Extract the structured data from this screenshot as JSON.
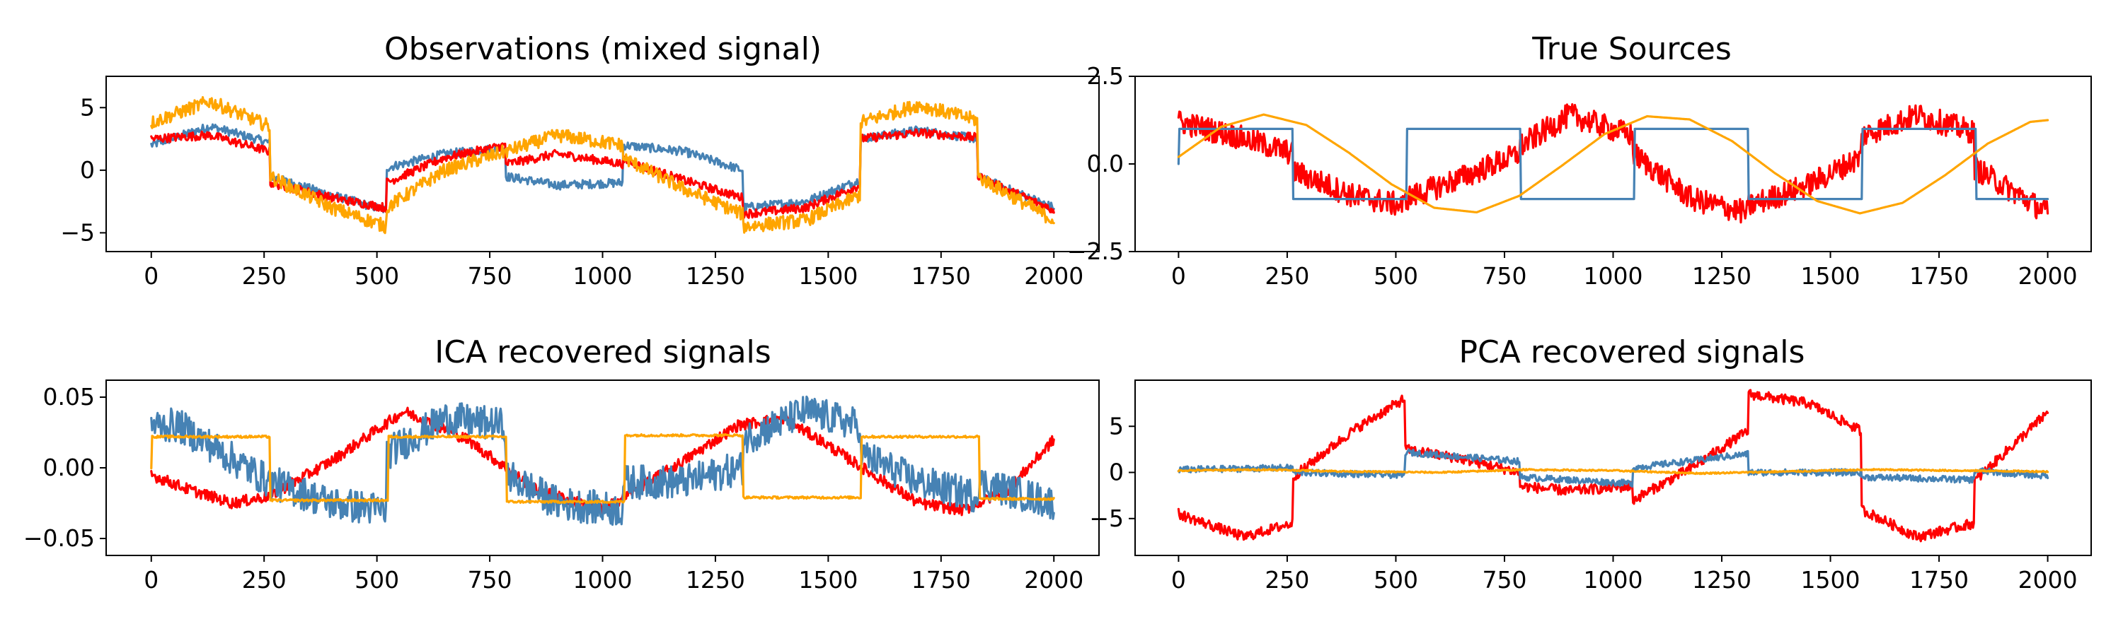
{
  "colors": {
    "red": "#ff0000",
    "blue": "#4682b4",
    "orange": "#ffa500"
  },
  "chart_data": [
    {
      "type": "line",
      "title": "Observations (mixed signal)",
      "xlim": [
        -100,
        2100
      ],
      "ylim": [
        -6.5,
        7.5
      ],
      "xticks": [
        0,
        250,
        500,
        750,
        1000,
        1250,
        1500,
        1750,
        2000
      ],
      "xtick_labels": [
        "0",
        "250",
        "500",
        "750",
        "1000",
        "1250",
        "1500",
        "1750",
        "2000"
      ],
      "yticks": [
        5,
        0,
        -5
      ],
      "ytick_labels": [
        "5",
        "0",
        "−5"
      ],
      "grid": false,
      "series": [
        {
          "color": "#4682b4",
          "x": [
            0,
            130,
            262,
            263,
            400,
            520,
            521,
            650,
            785,
            786,
            900,
            1045,
            1046,
            1180,
            1310,
            1311,
            1450,
            1570,
            1571,
            1700,
            1830,
            1831,
            2000
          ],
          "y": [
            2.0,
            3.5,
            2.2,
            -0.5,
            -2.0,
            -3.2,
            0.2,
            1.3,
            1.8,
            -0.5,
            -1.2,
            -1.0,
            2.0,
            1.5,
            0.0,
            -3.0,
            -2.5,
            -0.8,
            2.5,
            3.2,
            2.5,
            -0.5,
            -3.0
          ],
          "noise": 0.35
        },
        {
          "color": "#ff0000",
          "x": [
            0,
            130,
            262,
            263,
            400,
            520,
            521,
            650,
            785,
            786,
            900,
            1045,
            1046,
            1180,
            1310,
            1311,
            1450,
            1570,
            1571,
            1700,
            1830,
            1831,
            2000
          ],
          "y": [
            2.5,
            2.8,
            1.5,
            -1.0,
            -2.2,
            -3.0,
            -1.0,
            1.0,
            2.0,
            0.5,
            1.3,
            0.5,
            0.8,
            -0.8,
            -2.2,
            -3.5,
            -3.0,
            -1.2,
            2.5,
            3.0,
            2.6,
            -0.5,
            -3.2
          ],
          "noise": 0.35
        },
        {
          "color": "#ffa500",
          "x": [
            0,
            130,
            262,
            263,
            400,
            520,
            521,
            650,
            785,
            786,
            900,
            1045,
            1046,
            1180,
            1310,
            1311,
            1450,
            1570,
            1571,
            1700,
            1830,
            1831,
            2000
          ],
          "y": [
            3.8,
            5.5,
            3.5,
            -0.5,
            -3.0,
            -4.5,
            -3.0,
            0.0,
            1.5,
            1.5,
            2.8,
            2.0,
            1.0,
            -1.5,
            -3.5,
            -4.5,
            -4.0,
            -2.0,
            3.8,
            5.2,
            4.0,
            -0.5,
            -4.0
          ],
          "noise": 0.55
        }
      ]
    },
    {
      "type": "line",
      "title": "True Sources",
      "xlim": [
        -100,
        2100
      ],
      "ylim": [
        -2.5,
        2.5
      ],
      "xticks": [
        0,
        250,
        500,
        750,
        1000,
        1250,
        1500,
        1750,
        2000
      ],
      "xtick_labels": [
        "0",
        "250",
        "500",
        "750",
        "1000",
        "1250",
        "1500",
        "1750",
        "2000"
      ],
      "yticks": [
        2.5,
        0.0,
        -2.5
      ],
      "ytick_labels": [
        "2.5",
        "0.0",
        "−2.5"
      ],
      "grid": false,
      "series": [
        {
          "color": "#ff0000",
          "x": [
            0,
            130,
            262,
            263,
            400,
            520,
            521,
            650,
            785,
            786,
            900,
            1045,
            1046,
            1180,
            1310,
            1311,
            1450,
            1570,
            1571,
            1700,
            1830,
            1831,
            2000
          ],
          "y": [
            1.2,
            0.8,
            0.3,
            -0.2,
            -0.9,
            -1.2,
            -1.0,
            -0.4,
            0.3,
            0.5,
            1.4,
            0.8,
            0.3,
            -1.0,
            -1.4,
            -1.2,
            -0.6,
            0.2,
            0.8,
            1.4,
            0.9,
            -0.1,
            -1.4
          ],
          "noise": 0.35
        },
        {
          "color": "#4682b4",
          "x": [
            0,
            1,
            262,
            263,
            524,
            525,
            786,
            787,
            1048,
            1049,
            1310,
            1311,
            1572,
            1573,
            1834,
            1835,
            2000
          ],
          "y": [
            0,
            1,
            1,
            -1,
            -1,
            1,
            1,
            -1,
            -1,
            1,
            1,
            -1,
            -1,
            1,
            1,
            -1,
            -1
          ],
          "noise": 0
        },
        {
          "color": "#ffa500",
          "x": [
            0,
            98,
            196,
            294,
            392,
            490,
            588,
            686,
            784,
            882,
            980,
            1078,
            1176,
            1274,
            1372,
            1470,
            1568,
            1666,
            1764,
            1862,
            1960,
            2000
          ],
          "y": [
            0.2,
            1.06,
            1.41,
            1.11,
            0.32,
            -0.58,
            -1.25,
            -1.38,
            -0.91,
            -0.05,
            0.85,
            1.36,
            1.27,
            0.65,
            -0.26,
            -1.06,
            -1.41,
            -1.11,
            -0.32,
            0.58,
            1.2,
            1.25
          ],
          "noise": 0
        }
      ]
    },
    {
      "type": "line",
      "title": "ICA recovered signals",
      "xlim": [
        -100,
        2100
      ],
      "ylim": [
        -0.062,
        0.062
      ],
      "xticks": [
        0,
        250,
        500,
        750,
        1000,
        1250,
        1500,
        1750,
        2000
      ],
      "xtick_labels": [
        "0",
        "250",
        "500",
        "750",
        "1000",
        "1250",
        "1500",
        "1750",
        "2000"
      ],
      "yticks": [
        0.05,
        0.0,
        -0.05
      ],
      "ytick_labels": [
        "0.05",
        "0.00",
        "−0.05"
      ],
      "grid": false,
      "series": [
        {
          "color": "#ff0000",
          "x": [
            0,
            80,
            180,
            262,
            400,
            560,
            700,
            850,
            1000,
            1180,
            1300,
            1400,
            1480,
            1600,
            1700,
            1800,
            1900,
            2000
          ],
          "y": [
            -0.005,
            -0.015,
            -0.025,
            -0.02,
            0.005,
            0.04,
            0.02,
            -0.015,
            -0.03,
            0.005,
            0.03,
            0.035,
            0.02,
            -0.005,
            -0.025,
            -0.03,
            -0.015,
            0.02
          ],
          "noise": 0.004
        },
        {
          "color": "#4682b4",
          "x": [
            0,
            60,
            262,
            263,
            400,
            520,
            521,
            650,
            785,
            786,
            900,
            1045,
            1046,
            1180,
            1310,
            1311,
            1450,
            1570,
            1571,
            1700,
            1830,
            1831,
            2000
          ],
          "y": [
            0.03,
            0.03,
            -0.01,
            -0.01,
            -0.025,
            -0.03,
            0.01,
            0.035,
            0.03,
            -0.005,
            -0.025,
            -0.03,
            -0.01,
            -0.01,
            0.0,
            0.02,
            0.04,
            0.03,
            0.01,
            -0.01,
            -0.02,
            -0.01,
            -0.025
          ],
          "noise": 0.012
        },
        {
          "color": "#ffa500",
          "x": [
            0,
            1,
            262,
            263,
            524,
            525,
            786,
            787,
            1048,
            1049,
            1310,
            1311,
            1572,
            1573,
            1834,
            1835,
            2000
          ],
          "y": [
            0.0,
            0.022,
            0.022,
            -0.023,
            -0.023,
            0.022,
            0.022,
            -0.024,
            -0.024,
            0.023,
            0.023,
            -0.021,
            -0.021,
            0.022,
            0.022,
            -0.022,
            -0.022
          ],
          "noise": 0.0008
        }
      ]
    },
    {
      "type": "line",
      "title": "PCA recovered signals",
      "xlim": [
        -100,
        2100
      ],
      "ylim": [
        -9,
        10
      ],
      "xticks": [
        0,
        250,
        500,
        750,
        1000,
        1250,
        1500,
        1750,
        2000
      ],
      "xtick_labels": [
        "0",
        "250",
        "500",
        "750",
        "1000",
        "1250",
        "1500",
        "1750",
        "2000"
      ],
      "yticks": [
        5,
        0,
        -5
      ],
      "ytick_labels": [
        "5",
        "0",
        "−5"
      ],
      "grid": false,
      "series": [
        {
          "color": "#ff0000",
          "x": [
            0,
            150,
            262,
            263,
            400,
            520,
            521,
            650,
            785,
            786,
            900,
            1045,
            1046,
            1180,
            1310,
            1311,
            1450,
            1570,
            1571,
            1700,
            1830,
            1831,
            2000
          ],
          "y": [
            -4.5,
            -7.0,
            -5.5,
            -0.5,
            4.5,
            8.0,
            2.5,
            1.5,
            0.0,
            -1.5,
            -2.0,
            -1.5,
            -3.0,
            0.5,
            4.5,
            8.5,
            7.5,
            4.5,
            -4.0,
            -7.0,
            -5.5,
            -1.0,
            6.5
          ],
          "noise": 0.55
        },
        {
          "color": "#4682b4",
          "x": [
            0,
            262,
            263,
            520,
            521,
            785,
            786,
            1045,
            1046,
            1310,
            1311,
            1570,
            1571,
            1830,
            1831,
            2000
          ],
          "y": [
            0.3,
            0.5,
            0.0,
            -0.3,
            2.2,
            1.2,
            -0.5,
            -1.2,
            0.5,
            2.0,
            0.0,
            0.0,
            -0.5,
            -0.8,
            0.2,
            -0.4
          ],
          "noise": 0.35
        },
        {
          "color": "#ffa500",
          "x": [
            0,
            200,
            400,
            600,
            800,
            1000,
            1200,
            1400,
            1600,
            1800,
            2000
          ],
          "y": [
            0.2,
            0.3,
            0.1,
            0.0,
            0.3,
            0.2,
            -0.1,
            0.1,
            0.3,
            0.2,
            0.1
          ],
          "noise": 0.08
        }
      ]
    }
  ]
}
